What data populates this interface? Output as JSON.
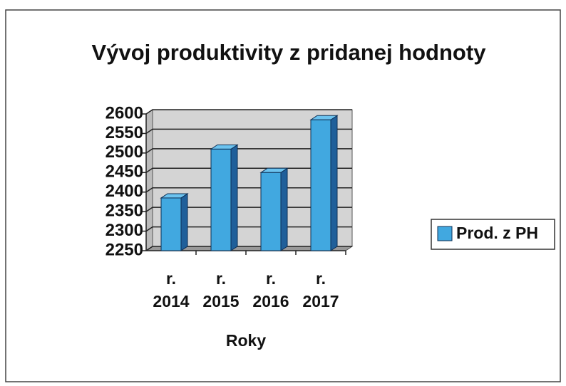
{
  "chart_data": {
    "type": "bar",
    "title": "Vývoj produktivity z pridanej hodnoty",
    "categories": [
      "r. 2014",
      "r. 2015",
      "r. 2016",
      "r. 2017"
    ],
    "series": [
      {
        "name": "Prod. z PH",
        "color": "#41a8e0",
        "values": [
          2385,
          2510,
          2450,
          2585
        ]
      }
    ],
    "ylim": [
      2250,
      2600
    ],
    "yticks": [
      2250,
      2300,
      2350,
      2400,
      2450,
      2500,
      2550,
      2600
    ],
    "x_label": "Roky",
    "grid": true,
    "legend": "right"
  }
}
